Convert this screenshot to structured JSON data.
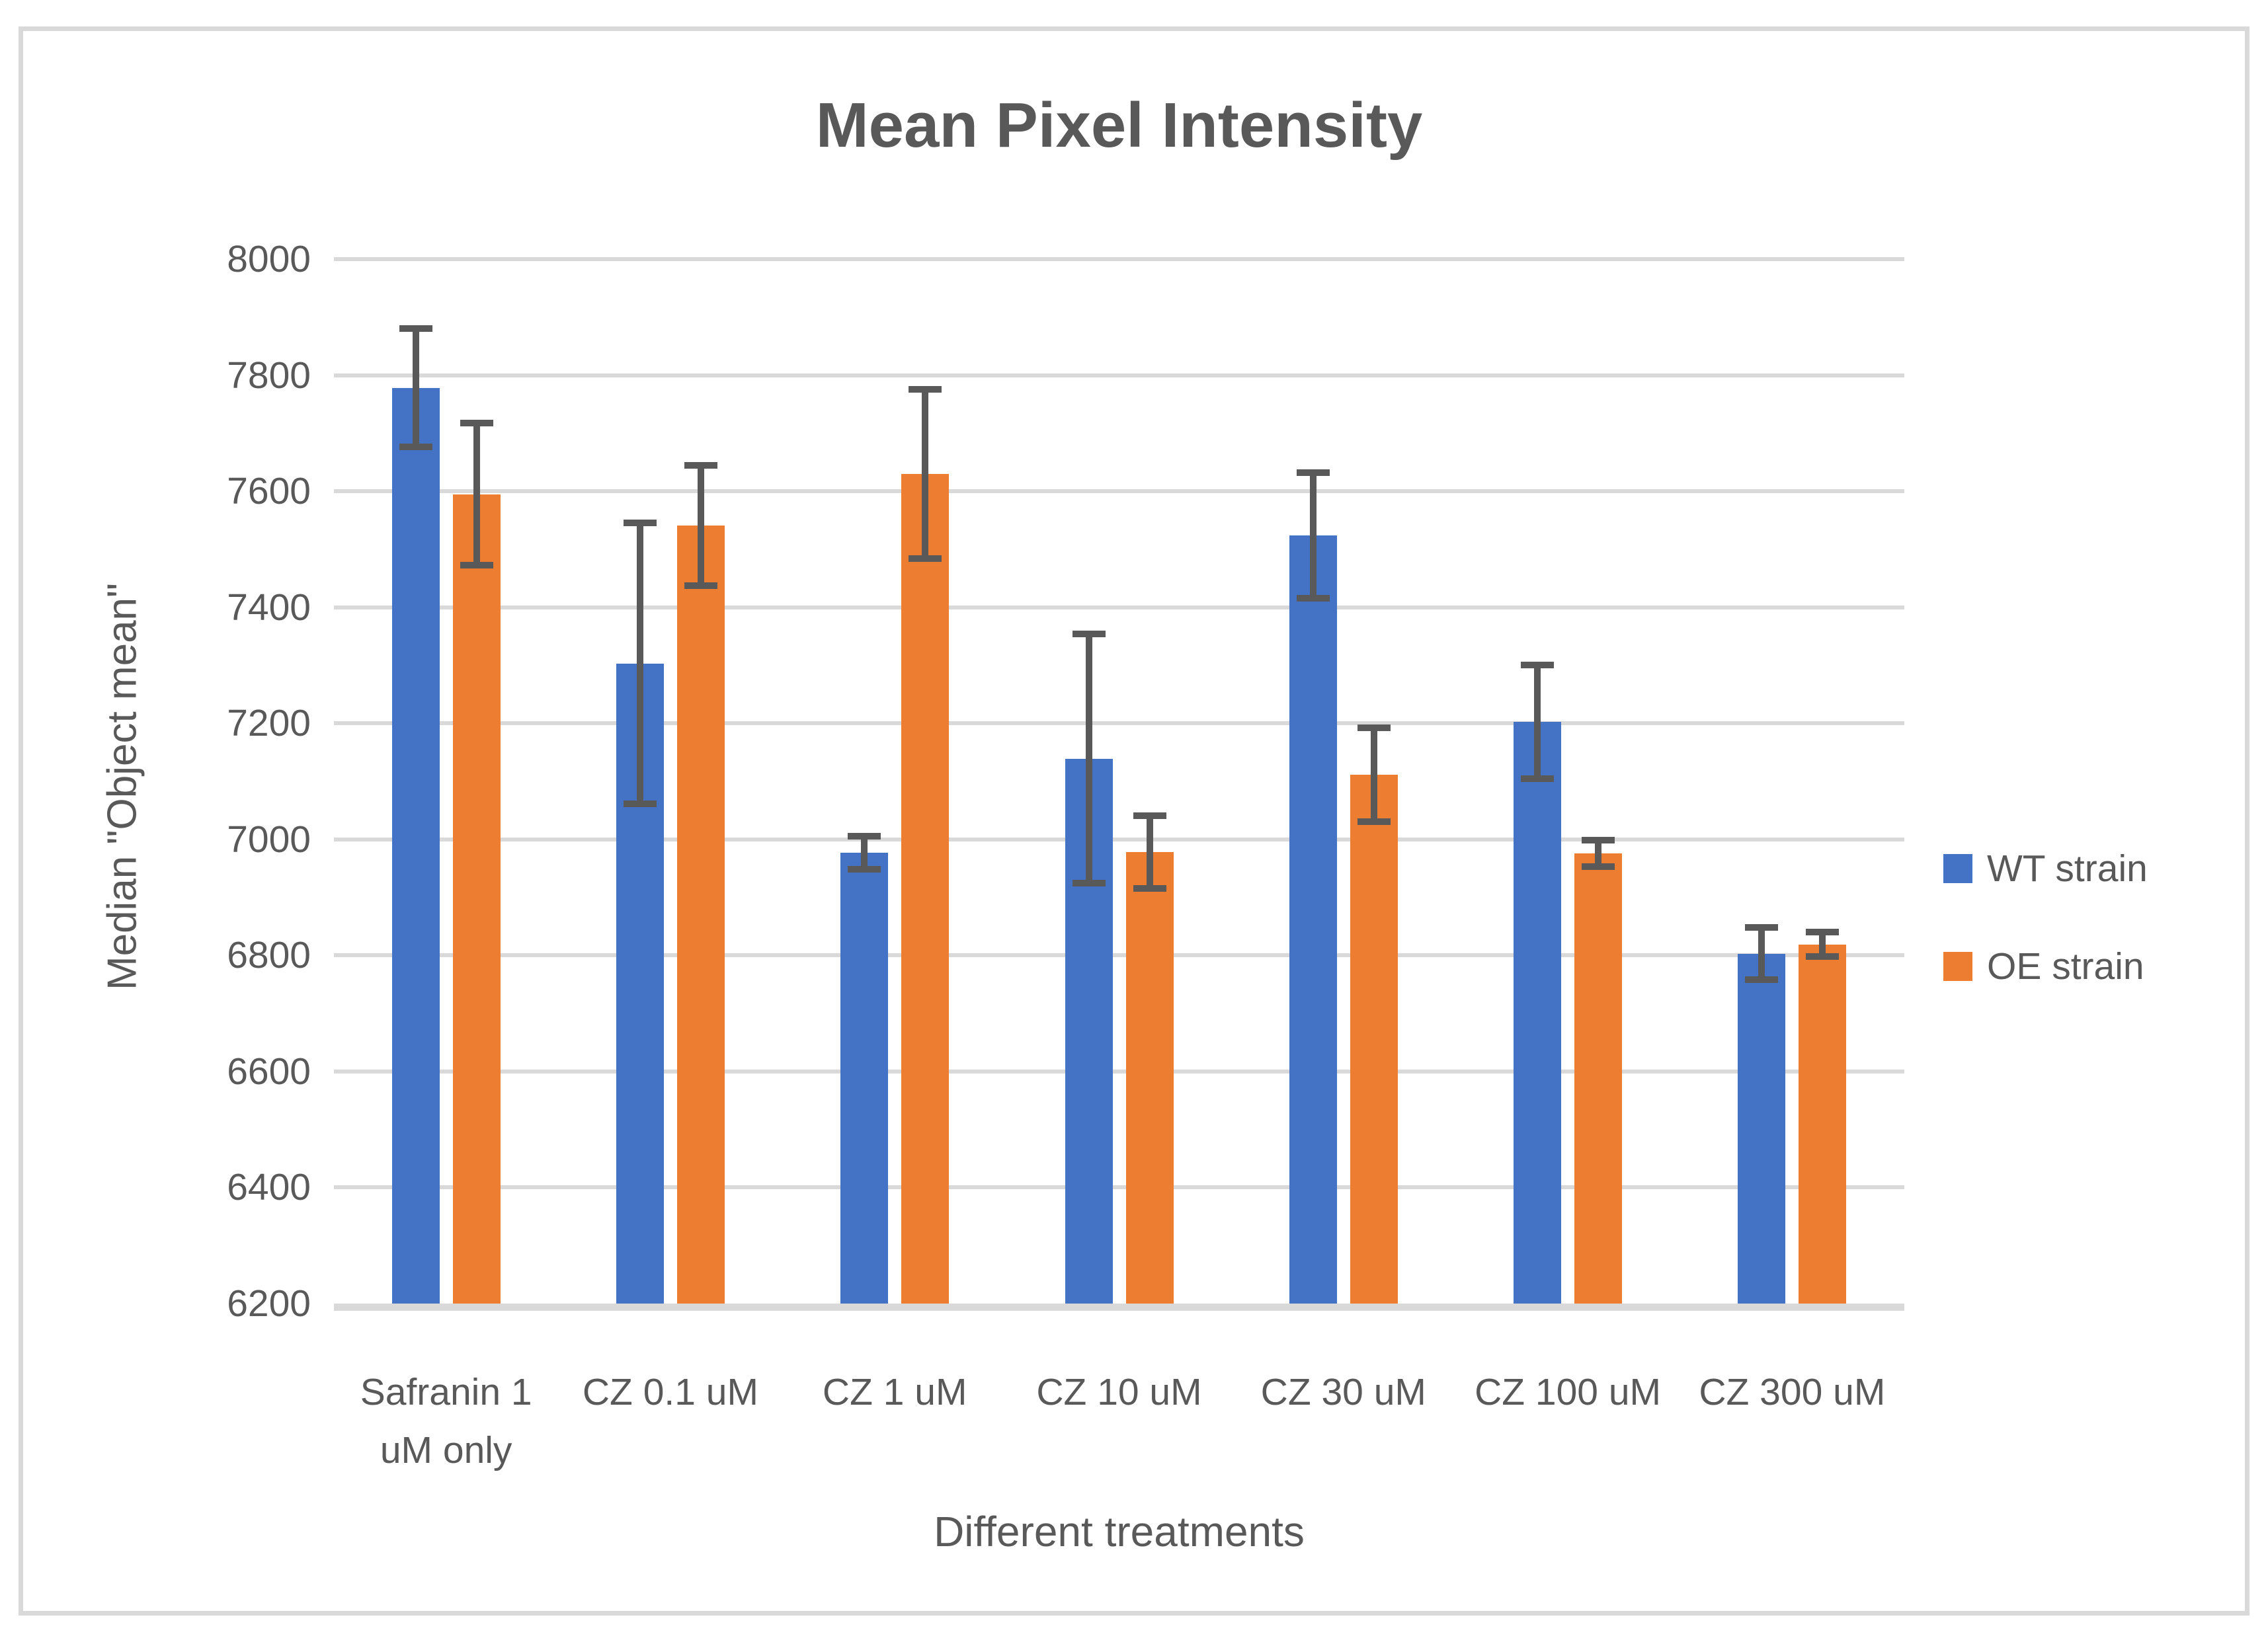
{
  "title": "Mean Pixel Intensity",
  "chart_data": {
    "type": "bar",
    "title": "Mean Pixel Intensity",
    "xlabel": "Different treatments",
    "ylabel": "Median \"Object mean\"",
    "categories": [
      "Safranin 1 uM only",
      "CZ 0.1 uM",
      "CZ 1 uM",
      "CZ 10 uM",
      "CZ 30 uM",
      "CZ 100 uM",
      "CZ 300 uM"
    ],
    "category_tick_lines": [
      [
        "Safranin 1",
        "uM only"
      ],
      [
        "CZ 0.1 uM"
      ],
      [
        "CZ 1 uM"
      ],
      [
        "CZ 10 uM"
      ],
      [
        "CZ 30 uM"
      ],
      [
        "CZ 100 uM"
      ],
      [
        "CZ 300 uM"
      ]
    ],
    "series": [
      {
        "name": "WT strain",
        "color": "#4472C4",
        "values": [
          7778,
          7303,
          6977,
          7139,
          7524,
          7203,
          6803
        ],
        "errors": [
          102,
          242,
          29,
          215,
          108,
          98,
          45
        ]
      },
      {
        "name": "OE strain",
        "color": "#ED7D31",
        "values": [
          7595,
          7541,
          7630,
          6978,
          7111,
          6976,
          6819
        ],
        "errors": [
          123,
          104,
          146,
          63,
          81,
          23,
          21
        ]
      }
    ],
    "ylim": [
      6200,
      8000
    ],
    "ytick_step": 200,
    "grid": true,
    "legend_position": "right",
    "error_bars": true
  },
  "legend": {
    "items": [
      {
        "label": "WT strain",
        "color": "#4472C4"
      },
      {
        "label": "OE strain",
        "color": "#ED7D31"
      }
    ]
  },
  "colors": {
    "text": "#595959",
    "gridline": "#D9D9D9",
    "axis_line": "#D9D9D9",
    "border": "#D9D9D9",
    "error_bar": "#595959",
    "background": "#FFFFFF"
  }
}
